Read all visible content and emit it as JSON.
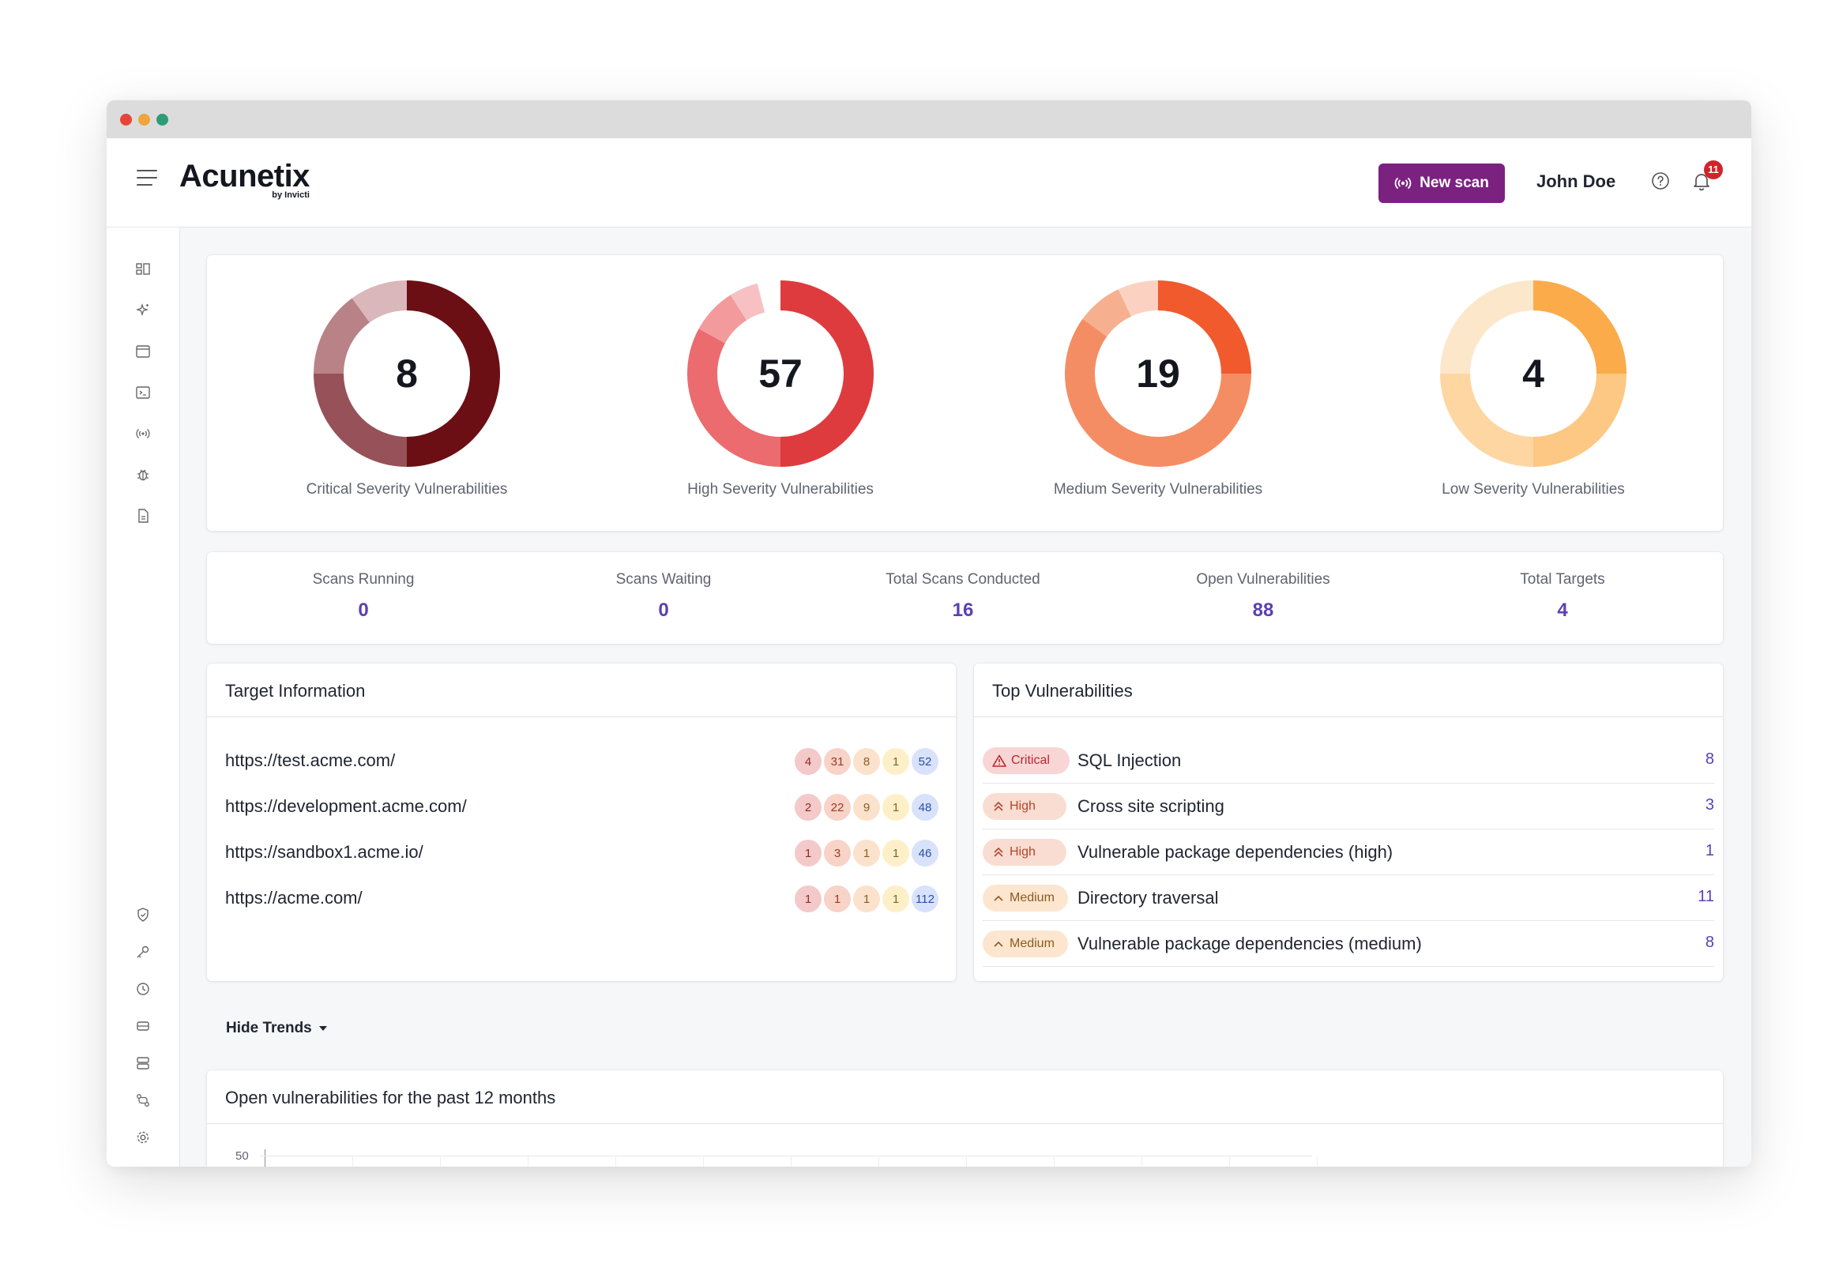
{
  "header": {
    "logo": "Acunetix",
    "logo_sub": "by Invicti",
    "new_scan_label": "New scan",
    "user_name": "John Doe",
    "notification_count": "11"
  },
  "sidebar": {
    "top_icons": [
      "dashboard-icon",
      "sparkle-icon",
      "targets-icon",
      "terminal-icon",
      "scans-icon",
      "bug-icon",
      "reports-icon"
    ],
    "bottom_icons": [
      "shield-icon",
      "key-icon",
      "clock-icon",
      "storage-icon",
      "database-icon",
      "integrations-icon",
      "settings-icon"
    ]
  },
  "severity": [
    {
      "count": "8",
      "label": "Critical Severity Vulnerabilities",
      "colors": [
        "#6b0f14",
        "#975158",
        "#b98287",
        "#d9b7ba"
      ],
      "fractions": [
        0.5,
        0.25,
        0.15,
        0.1
      ]
    },
    {
      "count": "57",
      "label": "High Severity Vulnerabilities",
      "colors": [
        "#de3b3e",
        "#eb6b6e",
        "#f29a9c",
        "#f7c1c3"
      ],
      "fractions": [
        0.5,
        0.33,
        0.08,
        0.05
      ]
    },
    {
      "count": "19",
      "label": "Medium Severity Vulnerabilities",
      "colors": [
        "#f05a2c",
        "#f58d64",
        "#f7b08f",
        "#fbd2c2"
      ],
      "fractions": [
        0.25,
        0.6,
        0.08,
        0.07
      ]
    },
    {
      "count": "4",
      "label": "Low Severity Vulnerabilities",
      "colors": [
        "#fbab4a",
        "#fdc883",
        "#fdd6a2",
        "#fde7cb"
      ],
      "fractions": [
        0.25,
        0.25,
        0.25,
        0.25
      ]
    }
  ],
  "stats": [
    {
      "label": "Scans Running",
      "value": "0"
    },
    {
      "label": "Scans Waiting",
      "value": "0"
    },
    {
      "label": "Total Scans Conducted",
      "value": "16"
    },
    {
      "label": "Open Vulnerabilities",
      "value": "88"
    },
    {
      "label": "Total Targets",
      "value": "4"
    }
  ],
  "target_info": {
    "title": "Target Information",
    "rows": [
      {
        "url": "https://test.acme.com/",
        "counts": [
          "4",
          "31",
          "8",
          "1",
          "52"
        ]
      },
      {
        "url": "https://development.acme.com/",
        "counts": [
          "2",
          "22",
          "9",
          "1",
          "48"
        ]
      },
      {
        "url": "https://sandbox1.acme.io/",
        "counts": [
          "1",
          "3",
          "1",
          "1",
          "46"
        ]
      },
      {
        "url": "https://acme.com/",
        "counts": [
          "1",
          "1",
          "1",
          "1",
          "112"
        ]
      }
    ]
  },
  "top_vulns": {
    "title": "Top Vulnerabilities",
    "rows": [
      {
        "severity": "Critical",
        "name": "SQL Injection",
        "count": "8"
      },
      {
        "severity": "High",
        "name": "Cross site scripting",
        "count": "3"
      },
      {
        "severity": "High",
        "name": "Vulnerable package dependencies (high)",
        "count": "1"
      },
      {
        "severity": "Medium",
        "name": "Directory traversal",
        "count": "11"
      },
      {
        "severity": "Medium",
        "name": "Vulnerable package dependencies (medium)",
        "count": "8"
      }
    ]
  },
  "trends": {
    "toggle_label": "Hide Trends",
    "chart_title": "Open vulnerabilities for the past 12 months",
    "y_top_label": "50"
  }
}
